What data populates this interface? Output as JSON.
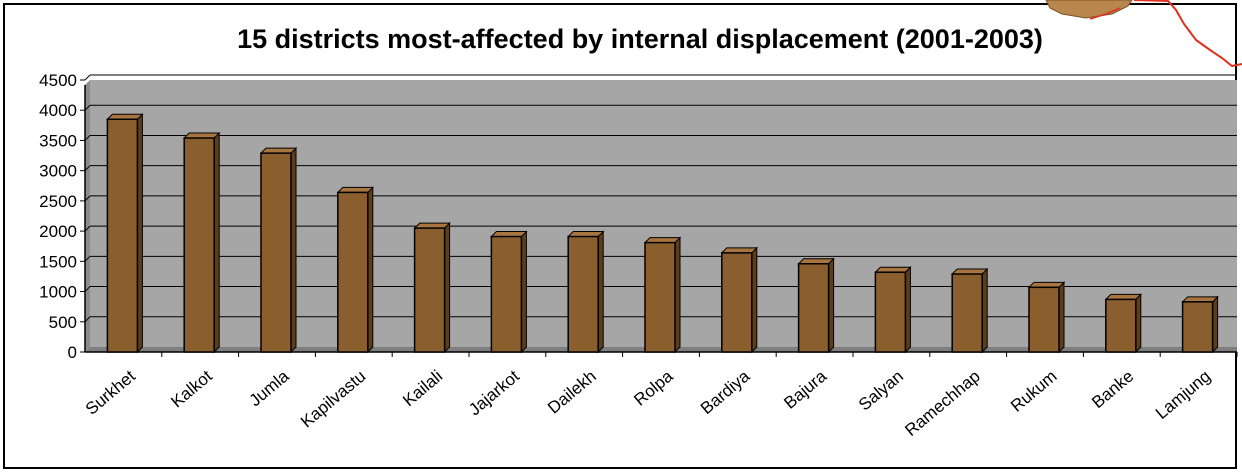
{
  "chart_data": {
    "type": "bar",
    "title": "15 districts most-affected by internal displacement (2001-2003)",
    "categories": [
      "Surkhet",
      "Kalkot",
      "Jumla",
      "Kapilvastu",
      "Kailali",
      "Jajarkot",
      "Dailekh",
      "Rolpa",
      "Bardiya",
      "Bajura",
      "Salyan",
      "Ramechhap",
      "Rukum",
      "Banke",
      "Lamjung"
    ],
    "values": [
      3850,
      3540,
      3290,
      2640,
      2050,
      1910,
      1910,
      1810,
      1640,
      1460,
      1320,
      1290,
      1070,
      870,
      830
    ],
    "ylim": [
      0,
      4500
    ],
    "yticks": [
      0,
      500,
      1000,
      1500,
      2000,
      2500,
      3000,
      3500,
      4000,
      4500
    ],
    "xlabel": "",
    "ylabel": "",
    "grid": true,
    "legend": "none",
    "colors": {
      "plot_background": "#a6a6a6",
      "bar_fill": "#8b5e2e",
      "bar_stroke": "#000000",
      "gridline": "#000000"
    }
  }
}
